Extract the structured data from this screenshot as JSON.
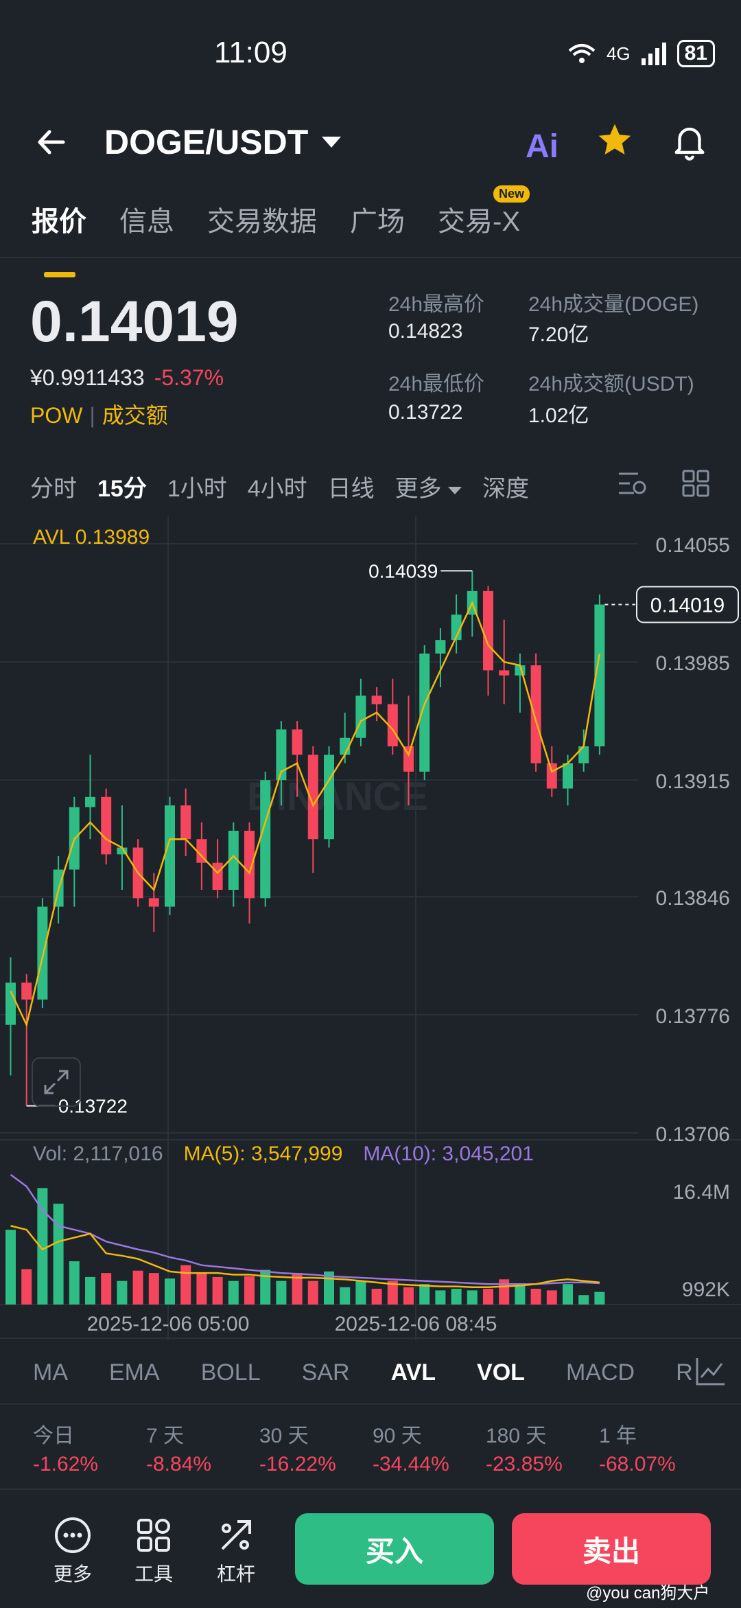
{
  "status": {
    "time": "11:09",
    "network": "4G",
    "battery": "81"
  },
  "header": {
    "pair": "DOGE/USDT",
    "ai_label": "Ai"
  },
  "tabs": [
    {
      "label": "报价",
      "active": true
    },
    {
      "label": "信息"
    },
    {
      "label": "交易数据"
    },
    {
      "label": "广场"
    },
    {
      "label": "交易-X",
      "badge": "New"
    }
  ],
  "price": {
    "last": "0.14019",
    "cny": "¥0.9911433",
    "change": "-5.37%",
    "tag1": "POW",
    "tag2": "成交额"
  },
  "stats": {
    "high_label": "24h最高价",
    "high": "0.14823",
    "low_label": "24h最低价",
    "low": "0.13722",
    "vol_label": "24h成交量(DOGE)",
    "vol": "7.20亿",
    "amt_label": "24h成交额(USDT)",
    "amt": "1.02亿"
  },
  "intervals": [
    "分时",
    "15分",
    "1小时",
    "4小时",
    "日线",
    "更多",
    "深度"
  ],
  "active_interval": "15分",
  "chart_data": {
    "type": "candlestick",
    "avl_label": "AVL 0.13989",
    "y_ticks": [
      "0.14055",
      "0.13985",
      "0.13915",
      "0.13846",
      "0.13776",
      "0.13706"
    ],
    "ylim": [
      0.13706,
      0.14055
    ],
    "current_price": "0.14019",
    "max_label": "0.14039",
    "min_label": "0.13722",
    "x_labels": [
      "2025-12-06 05:00",
      "2025-12-06 08:45"
    ],
    "watermark": "BINANCE",
    "candles": [
      [
        0.1377,
        0.13795,
        0.1374,
        0.1381
      ],
      [
        0.13795,
        0.13785,
        0.13722,
        0.138
      ],
      [
        0.13785,
        0.1384,
        0.1378,
        0.13845
      ],
      [
        0.1384,
        0.13862,
        0.1383,
        0.1387
      ],
      [
        0.13862,
        0.13899,
        0.1384,
        0.13905
      ],
      [
        0.13899,
        0.13905,
        0.1388,
        0.1393
      ],
      [
        0.13905,
        0.13871,
        0.13865,
        0.1391
      ],
      [
        0.13871,
        0.13875,
        0.1385,
        0.139
      ],
      [
        0.13875,
        0.13845,
        0.1384,
        0.1388
      ],
      [
        0.13845,
        0.1384,
        0.13825,
        0.1386
      ],
      [
        0.1384,
        0.139,
        0.13835,
        0.13905
      ],
      [
        0.139,
        0.1388,
        0.1387,
        0.1391
      ],
      [
        0.1388,
        0.13866,
        0.1385,
        0.1389
      ],
      [
        0.13866,
        0.1385,
        0.13845,
        0.1388
      ],
      [
        0.1385,
        0.13885,
        0.1384,
        0.1389
      ],
      [
        0.13885,
        0.13845,
        0.1383,
        0.1389
      ],
      [
        0.13845,
        0.13915,
        0.1384,
        0.1392
      ],
      [
        0.13915,
        0.13945,
        0.139,
        0.1395
      ],
      [
        0.13945,
        0.1393,
        0.13905,
        0.1395
      ],
      [
        0.1393,
        0.1388,
        0.1386,
        0.13935
      ],
      [
        0.1388,
        0.1393,
        0.13875,
        0.13935
      ],
      [
        0.1393,
        0.1394,
        0.13925,
        0.13955
      ],
      [
        0.1394,
        0.13965,
        0.13935,
        0.13975
      ],
      [
        0.13965,
        0.1396,
        0.1395,
        0.1397
      ],
      [
        0.1396,
        0.13935,
        0.1393,
        0.13975
      ],
      [
        0.13935,
        0.1392,
        0.139,
        0.13965
      ],
      [
        0.1392,
        0.1399,
        0.13915,
        0.13995
      ],
      [
        0.1399,
        0.13998,
        0.1397,
        0.14005
      ],
      [
        0.13998,
        0.14013,
        0.1399,
        0.14025
      ],
      [
        0.14013,
        0.14027,
        0.14,
        0.14039
      ],
      [
        0.14027,
        0.1398,
        0.13965,
        0.1403
      ],
      [
        0.1398,
        0.13977,
        0.1396,
        0.1401
      ],
      [
        0.13977,
        0.13983,
        0.13955,
        0.1399
      ],
      [
        0.13983,
        0.13925,
        0.1392,
        0.1399
      ],
      [
        0.13925,
        0.1391,
        0.13905,
        0.13935
      ],
      [
        0.1391,
        0.13925,
        0.139,
        0.1393
      ],
      [
        0.13925,
        0.13935,
        0.1392,
        0.13945
      ],
      [
        0.13935,
        0.14019,
        0.1393,
        0.14025
      ]
    ],
    "avl_line": [
      0.1379,
      0.1377,
      0.1381,
      0.1385,
      0.1388,
      0.1389,
      0.1388,
      0.13875,
      0.1386,
      0.1385,
      0.1388,
      0.1388,
      0.1387,
      0.1386,
      0.1387,
      0.1386,
      0.1389,
      0.1392,
      0.13925,
      0.139,
      0.13915,
      0.1393,
      0.1395,
      0.13955,
      0.13945,
      0.1393,
      0.1396,
      0.1398,
      0.14,
      0.1402,
      0.13995,
      0.13985,
      0.13983,
      0.1395,
      0.1392,
      0.13925,
      0.13935,
      0.1399
    ],
    "volume": {
      "label": "Vol: 2,117,016",
      "ma5_label": "MA(5): 3,547,999",
      "ma10_label": "MA(10): 3,045,201",
      "y_ticks": [
        "16.4M",
        "992K"
      ],
      "values": [
        9.5,
        4.5,
        14.8,
        12.8,
        5.5,
        3.5,
        4.0,
        3.0,
        4.3,
        4.0,
        3.3,
        5.0,
        4.0,
        3.5,
        3.0,
        3.6,
        4.4,
        3.0,
        4.0,
        3.0,
        4.2,
        2.2,
        3.0,
        2.0,
        3.0,
        2.2,
        2.6,
        1.8,
        2.0,
        1.8,
        2.0,
        3.2,
        2.6,
        2.0,
        1.8,
        2.6,
        1.2,
        1.6
      ],
      "ma5": [
        10,
        9.5,
        7.0,
        8.0,
        8.5,
        9.0,
        6.5,
        6.2,
        5.8,
        5.0,
        4.2,
        4.0,
        4.0,
        4.0,
        3.8,
        3.8,
        3.6,
        3.5,
        3.4,
        3.4,
        3.3,
        3.2,
        3.0,
        2.8,
        2.6,
        2.5,
        2.4,
        2.3,
        2.3,
        2.2,
        2.2,
        2.3,
        2.4,
        2.6,
        3.0,
        3.2,
        3.0,
        2.8
      ],
      "ma10": [
        16.5,
        15.0,
        12.0,
        10.0,
        9.5,
        9.0,
        8.0,
        7.5,
        7.0,
        6.6,
        6.0,
        5.6,
        5.0,
        4.8,
        4.6,
        4.4,
        4.2,
        4.0,
        3.9,
        3.8,
        3.6,
        3.5,
        3.4,
        3.3,
        3.2,
        3.1,
        3.0,
        2.9,
        2.8,
        2.7,
        2.6,
        2.6,
        2.6,
        2.6,
        2.7,
        2.8,
        2.8,
        2.7
      ]
    }
  },
  "indicators": [
    "MA",
    "EMA",
    "BOLL",
    "SAR",
    "AVL",
    "VOL",
    "MACD",
    "R"
  ],
  "active_indicators": [
    "AVL",
    "VOL"
  ],
  "performance": [
    {
      "label": "今日",
      "value": "-1.62%"
    },
    {
      "label": "7 天",
      "value": "-8.84%"
    },
    {
      "label": "30 天",
      "value": "-16.22%"
    },
    {
      "label": "90 天",
      "value": "-34.44%"
    },
    {
      "label": "180 天",
      "value": "-23.85%"
    },
    {
      "label": "1 年",
      "value": "-68.07%"
    }
  ],
  "bottom": {
    "more": "更多",
    "tools": "工具",
    "leverage": "杠杆",
    "buy": "买入",
    "sell": "卖出",
    "watermark": "@you can狗大户"
  },
  "colors": {
    "up": "#2ebd85",
    "down": "#f6465d",
    "accent": "#f0b90b",
    "bg": "#1e2329"
  }
}
